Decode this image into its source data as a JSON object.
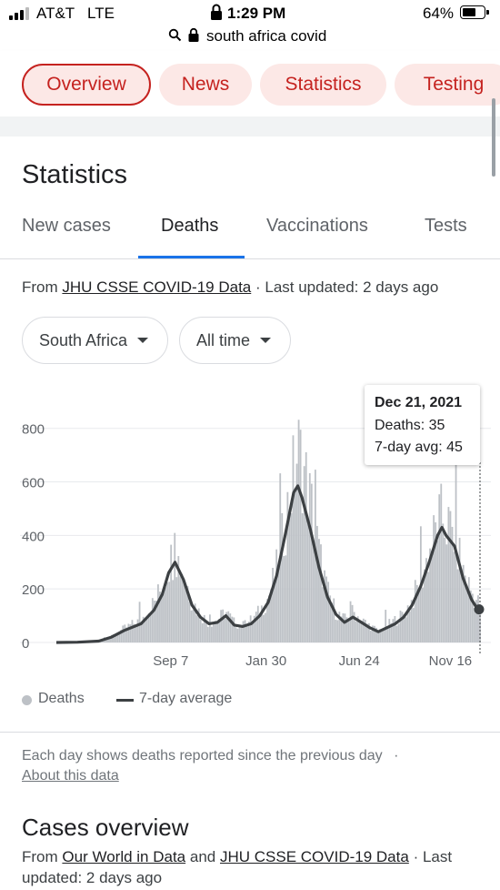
{
  "status_bar": {
    "carrier": "AT&T",
    "network": "LTE",
    "time": "1:29 PM",
    "battery_percent": "64%",
    "battery_level": 0.64
  },
  "url_bar": {
    "url": "south africa covid"
  },
  "nav_chips": [
    {
      "label": "Overview",
      "active": true
    },
    {
      "label": "News",
      "active": false
    },
    {
      "label": "Statistics",
      "active": false
    },
    {
      "label": "Testing",
      "active": false
    }
  ],
  "section": {
    "title": "Statistics"
  },
  "stat_tabs": [
    {
      "label": "New cases",
      "active": false
    },
    {
      "label": "Deaths",
      "active": true
    },
    {
      "label": "Vaccinations",
      "active": false
    },
    {
      "label": "Tests",
      "active": false
    }
  ],
  "source": {
    "prefix": "From",
    "link": "JHU CSSE COVID-19 Data",
    "suffix": "· Last updated: 2 days ago"
  },
  "filters": {
    "region": "South Africa",
    "range": "All time"
  },
  "tooltip": {
    "date": "Dec 21, 2021",
    "deaths": "Deaths: 35",
    "avg": "7-day avg: 45"
  },
  "legend": {
    "bars": "Deaths",
    "line": "7-day average"
  },
  "note": {
    "text": "Each day shows deaths reported since the previous day",
    "dot": "·",
    "link": "About this data"
  },
  "cases_overview": {
    "title": "Cases overview",
    "from": "From",
    "link1": "Our World in Data",
    "and": "and",
    "link2": "JHU CSSE COVID-19 Data",
    "suffix": "· Last updated: 2 days ago"
  },
  "colors": {
    "chip_bg": "#fce8e6",
    "chip_text": "#c5221f",
    "tab_underline": "#1a73e8",
    "bar": "#bdc1c6",
    "line": "#3c4043"
  },
  "chart_data": {
    "type": "bar",
    "y_ticks": [
      "0",
      "200",
      "400",
      "600",
      "800"
    ],
    "ylim": [
      0,
      850
    ],
    "x_ticks": [
      "Sep 7",
      "Jan 30",
      "Jun 24",
      "Nov 16"
    ],
    "series": [
      {
        "name": "Deaths",
        "type": "bar",
        "points": [
          [
            0,
            0
          ],
          [
            0.05,
            2
          ],
          [
            0.1,
            5
          ],
          [
            0.13,
            20
          ],
          [
            0.16,
            50
          ],
          [
            0.2,
            80
          ],
          [
            0.23,
            140
          ],
          [
            0.25,
            200
          ],
          [
            0.265,
            280
          ],
          [
            0.28,
            320
          ],
          [
            0.3,
            250
          ],
          [
            0.32,
            150
          ],
          [
            0.34,
            100
          ],
          [
            0.36,
            70
          ],
          [
            0.38,
            80
          ],
          [
            0.4,
            110
          ],
          [
            0.42,
            70
          ],
          [
            0.44,
            60
          ],
          [
            0.46,
            80
          ],
          [
            0.48,
            110
          ],
          [
            0.5,
            160
          ],
          [
            0.52,
            260
          ],
          [
            0.54,
            420
          ],
          [
            0.56,
            600
          ],
          [
            0.57,
            680
          ],
          [
            0.58,
            640
          ],
          [
            0.6,
            500
          ],
          [
            0.62,
            320
          ],
          [
            0.64,
            180
          ],
          [
            0.66,
            110
          ],
          [
            0.68,
            80
          ],
          [
            0.7,
            110
          ],
          [
            0.72,
            80
          ],
          [
            0.74,
            60
          ],
          [
            0.76,
            40
          ],
          [
            0.78,
            60
          ],
          [
            0.8,
            80
          ],
          [
            0.82,
            100
          ],
          [
            0.84,
            150
          ],
          [
            0.86,
            220
          ],
          [
            0.88,
            320
          ],
          [
            0.9,
            420
          ],
          [
            0.91,
            450
          ],
          [
            0.92,
            420
          ],
          [
            0.94,
            380
          ],
          [
            0.96,
            260
          ],
          [
            0.98,
            180
          ],
          [
            1,
            130
          ]
        ]
      },
      {
        "name": "7-day average",
        "type": "line",
        "points": [
          [
            0,
            0
          ],
          [
            0.05,
            1
          ],
          [
            0.1,
            5
          ],
          [
            0.13,
            20
          ],
          [
            0.16,
            45
          ],
          [
            0.2,
            70
          ],
          [
            0.23,
            120
          ],
          [
            0.25,
            180
          ],
          [
            0.265,
            260
          ],
          [
            0.28,
            300
          ],
          [
            0.3,
            235
          ],
          [
            0.32,
            140
          ],
          [
            0.34,
            95
          ],
          [
            0.36,
            70
          ],
          [
            0.38,
            75
          ],
          [
            0.4,
            100
          ],
          [
            0.42,
            65
          ],
          [
            0.44,
            60
          ],
          [
            0.46,
            70
          ],
          [
            0.48,
            100
          ],
          [
            0.5,
            150
          ],
          [
            0.52,
            250
          ],
          [
            0.54,
            400
          ],
          [
            0.56,
            560
          ],
          [
            0.57,
            585
          ],
          [
            0.58,
            540
          ],
          [
            0.6,
            420
          ],
          [
            0.62,
            280
          ],
          [
            0.64,
            170
          ],
          [
            0.66,
            105
          ],
          [
            0.68,
            75
          ],
          [
            0.7,
            95
          ],
          [
            0.72,
            75
          ],
          [
            0.74,
            55
          ],
          [
            0.76,
            40
          ],
          [
            0.78,
            55
          ],
          [
            0.8,
            70
          ],
          [
            0.82,
            95
          ],
          [
            0.84,
            140
          ],
          [
            0.86,
            210
          ],
          [
            0.88,
            300
          ],
          [
            0.9,
            400
          ],
          [
            0.91,
            430
          ],
          [
            0.92,
            400
          ],
          [
            0.94,
            360
          ],
          [
            0.96,
            240
          ],
          [
            0.98,
            160
          ],
          [
            1,
            110
          ]
        ]
      }
    ]
  }
}
